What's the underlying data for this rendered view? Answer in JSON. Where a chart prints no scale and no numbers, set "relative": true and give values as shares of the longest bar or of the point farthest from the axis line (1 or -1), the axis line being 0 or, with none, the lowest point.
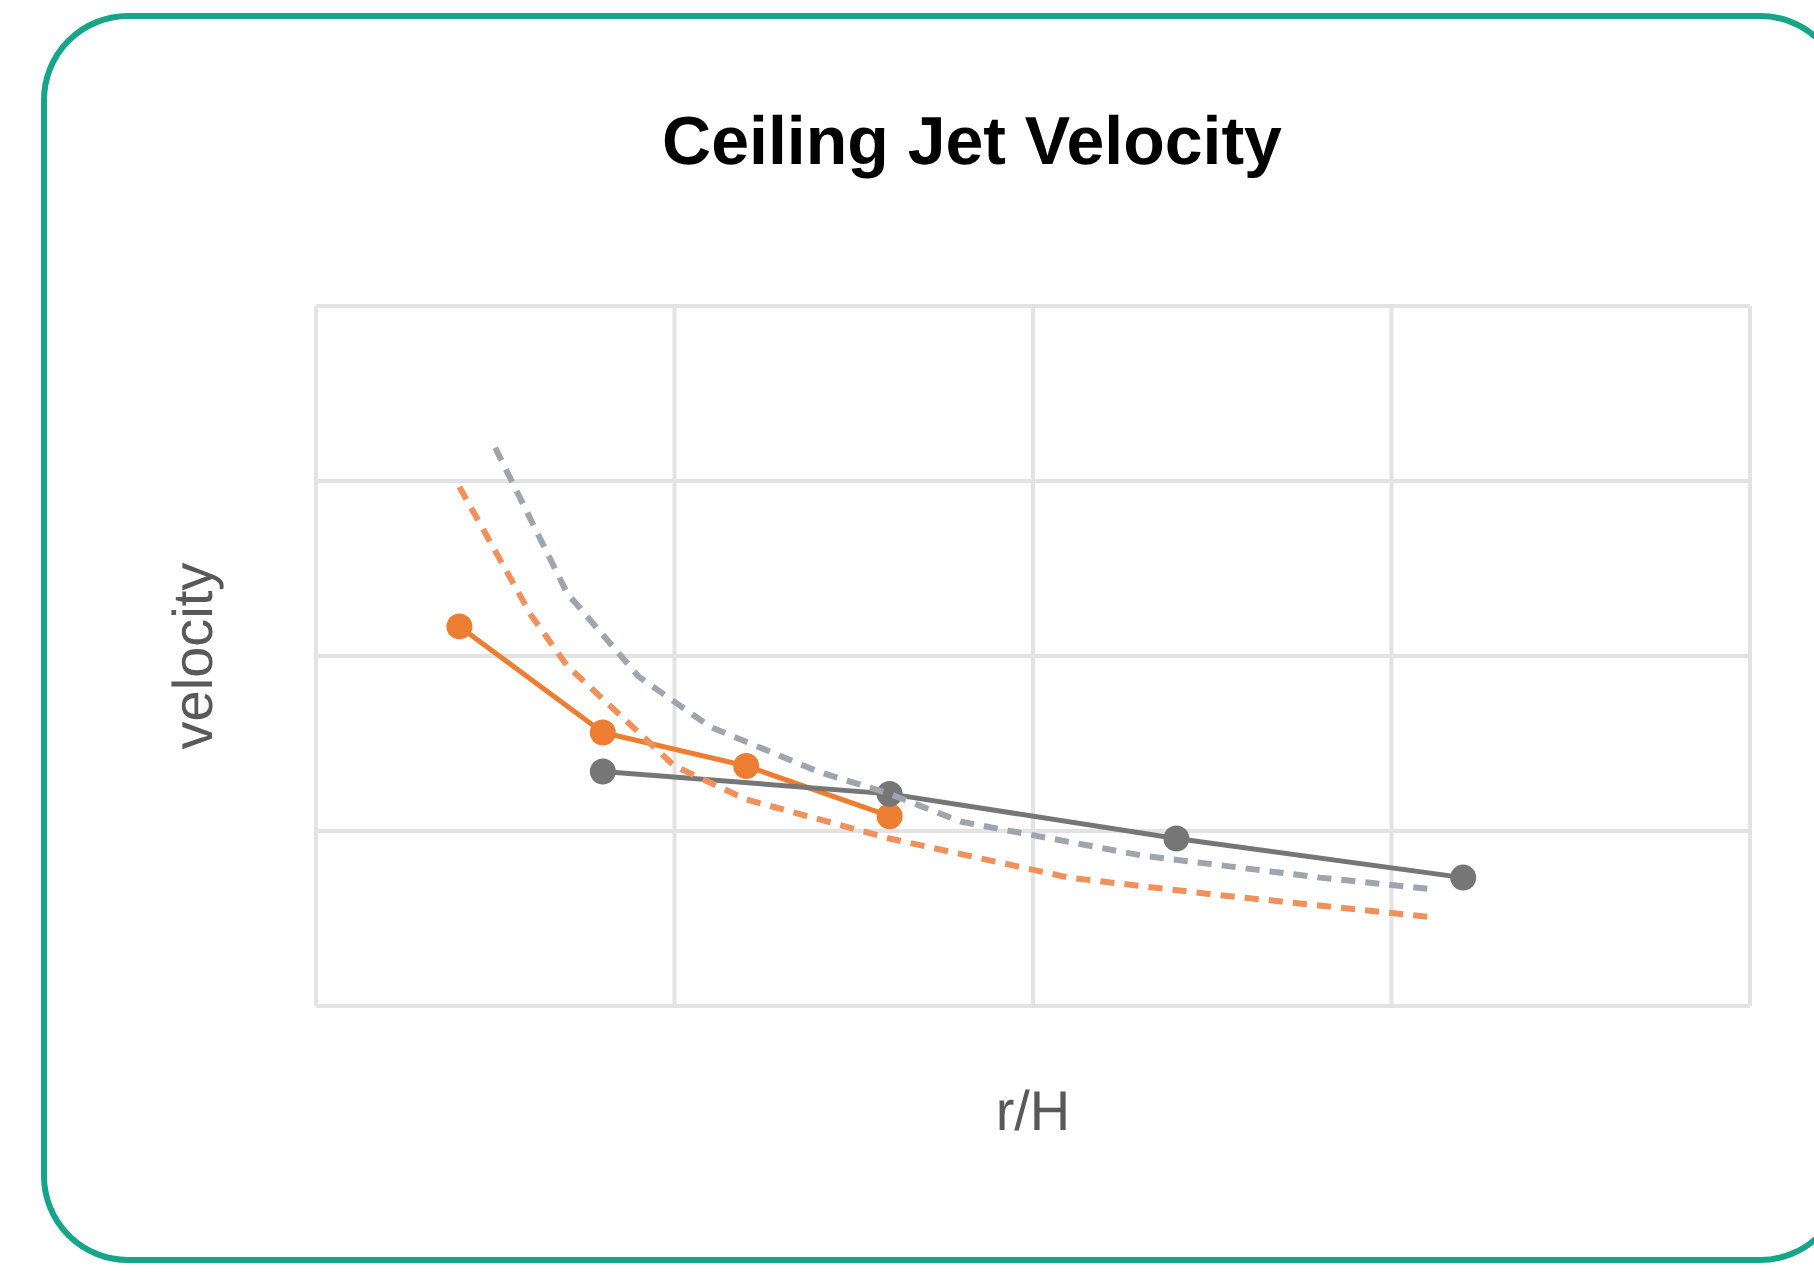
{
  "chart_data": {
    "type": "line",
    "title": "Ceiling Jet Velocity",
    "xlabel": "r/H",
    "ylabel": "velocity",
    "relative": true,
    "grid": true,
    "categories": [
      null,
      null,
      null,
      null,
      null,
      null,
      null,
      null,
      null,
      null,
      null,
      null,
      null,
      null,
      null,
      null,
      null,
      null,
      null,
      null,
      null,
      null,
      null,
      null,
      null,
      null,
      null,
      null,
      null,
      null,
      null,
      null,
      null,
      null,
      null,
      null,
      null,
      null,
      null,
      null,
      null
    ],
    "series": [
      {
        "color": "#ed7d31",
        "marker": "circle",
        "line_style": "solid",
        "values": [
          null,
          null,
          null,
          null,
          0.68,
          null,
          null,
          null,
          0.49,
          null,
          null,
          null,
          0.43,
          null,
          null,
          null,
          0.34,
          null,
          null,
          null,
          null,
          null,
          null,
          null,
          null,
          null,
          null,
          null,
          null,
          null,
          null,
          null,
          null,
          null,
          null,
          null,
          null,
          null,
          null,
          null,
          null
        ]
      },
      {
        "color": "#767676",
        "marker": "circle",
        "line_style": "solid",
        "values": [
          null,
          null,
          null,
          null,
          null,
          null,
          null,
          null,
          0.42,
          null,
          null,
          null,
          null,
          null,
          null,
          null,
          0.38,
          null,
          null,
          null,
          null,
          null,
          null,
          null,
          0.3,
          null,
          null,
          null,
          null,
          null,
          null,
          null,
          0.23,
          null,
          null,
          null,
          null,
          null,
          null,
          null,
          null
        ]
      },
      {
        "color": "#9ea5ad",
        "marker": "none",
        "line_style": "dashed",
        "values": [
          null,
          null,
          null,
          null,
          null,
          1.0,
          null,
          0.74,
          null,
          0.59,
          null,
          0.5,
          null,
          null,
          0.42,
          null,
          0.38,
          null,
          0.33,
          null,
          null,
          null,
          null,
          0.27,
          null,
          null,
          null,
          null,
          0.23,
          null,
          null,
          0.21,
          null,
          null,
          null,
          null,
          null,
          null,
          null,
          null,
          null
        ]
      },
      {
        "color": "#f0905a",
        "marker": "none",
        "line_style": "dashed",
        "values": [
          null,
          null,
          null,
          null,
          0.93,
          null,
          0.7,
          0.61,
          null,
          null,
          0.43,
          null,
          0.37,
          null,
          null,
          null,
          0.3,
          null,
          null,
          null,
          null,
          0.23,
          null,
          null,
          null,
          0.2,
          null,
          null,
          null,
          null,
          null,
          0.16,
          null,
          null,
          null,
          null,
          null,
          null,
          null,
          null,
          null
        ]
      }
    ]
  }
}
